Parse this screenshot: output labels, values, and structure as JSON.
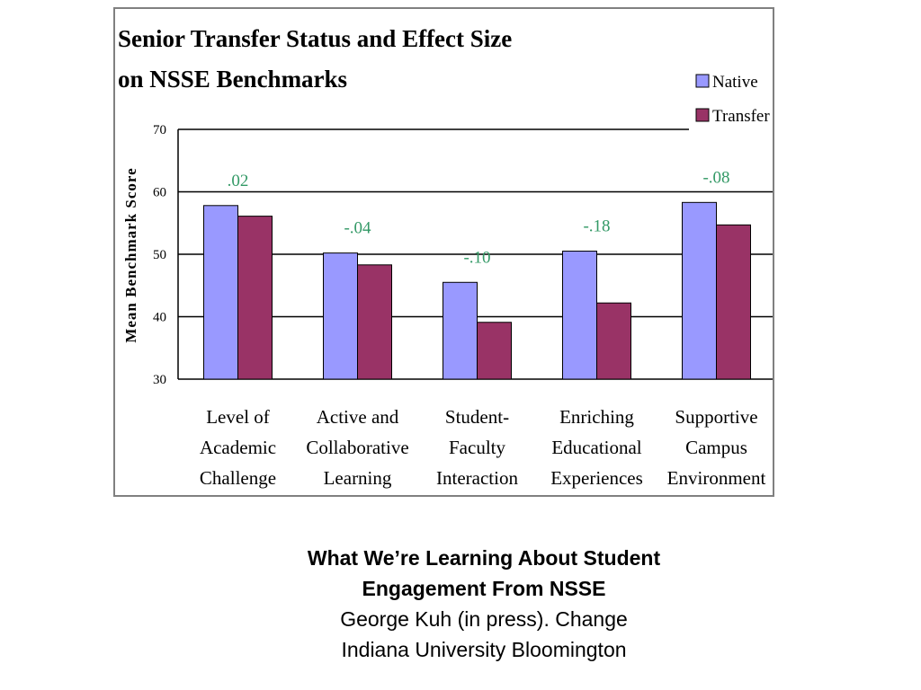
{
  "chart_data": {
    "type": "bar",
    "title_lines": [
      "Senior Transfer Status and Effect Size",
      "on NSSE Benchmarks"
    ],
    "ylabel": "Mean Benchmark Score",
    "ylim": [
      30,
      70
    ],
    "yticks": [
      "30",
      "40",
      "50",
      "60",
      "70"
    ],
    "grid": true,
    "legend_position": "top-right",
    "categories": [
      [
        "Level of",
        "Academic",
        "Challenge"
      ],
      [
        "Active and",
        "Collaborative",
        "Learning"
      ],
      [
        "Student-",
        "Faculty",
        "Interaction"
      ],
      [
        "Enriching",
        "Educational",
        "Experiences"
      ],
      [
        "Supportive",
        "Campus",
        "Environment"
      ]
    ],
    "series": [
      {
        "name": "Native",
        "color": "#9999ff",
        "values": [
          57.8,
          50.2,
          45.5,
          50.5,
          58.3
        ]
      },
      {
        "name": "Transfer",
        "color": "#993366",
        "values": [
          56.1,
          48.3,
          39.1,
          42.2,
          54.7
        ]
      }
    ],
    "effect_sizes": [
      ".02",
      "-.04",
      "-.10",
      "-.18",
      "-.08"
    ],
    "effect_color": "#339966"
  },
  "caption": {
    "line1": "What We’re Learning About Student",
    "line2": "Engagement From NSSE",
    "line3": "George Kuh (in press). Change",
    "line4": "Indiana University Bloomington"
  }
}
